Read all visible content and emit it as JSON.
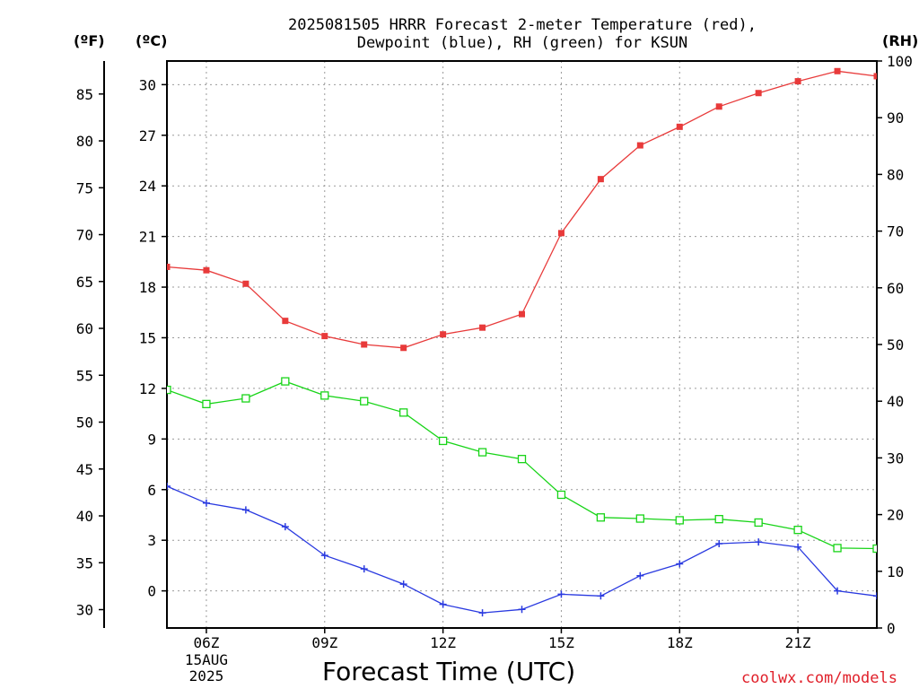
{
  "title_lines": [
    "2025081505 HRRR Forecast 2-meter Temperature (red),",
    "Dewpoint (blue), RH (green) for KSUN"
  ],
  "unit_labels": {
    "fahrenheit": "(ºF)",
    "celsius": "(ºC)",
    "rh": "(RH)"
  },
  "xaxis_title": "Forecast Time (UTC)",
  "credit": "coolwx.com/models",
  "colors": {
    "temperature": "#e83a3a",
    "dewpoint": "#2a3ae0",
    "rh": "#18d418",
    "credit": "#e0202a",
    "grid": "#9a9a9a"
  },
  "chart_data": {
    "type": "line",
    "title": "2025081505 HRRR Forecast 2-meter Temperature (red), Dewpoint (blue), RH (green) for KSUN",
    "xlabel": "Forecast Time (UTC)",
    "x_hours": [
      5,
      6,
      7,
      8,
      9,
      10,
      11,
      12,
      13,
      14,
      15,
      16,
      17,
      18,
      19,
      20,
      21,
      22,
      23
    ],
    "x_ticks": [
      {
        "hour": 6,
        "label": "06Z",
        "sub": [
          "15AUG",
          "2025"
        ]
      },
      {
        "hour": 9,
        "label": "09Z"
      },
      {
        "hour": 12,
        "label": "12Z"
      },
      {
        "hour": 15,
        "label": "15Z"
      },
      {
        "hour": 18,
        "label": "18Z"
      },
      {
        "hour": 21,
        "label": "21Z"
      }
    ],
    "xlim": [
      5,
      23
    ],
    "celsius_ticks": [
      "30",
      "27",
      "24",
      "21",
      "18",
      "15",
      "12",
      "9",
      "6",
      "3",
      "0"
    ],
    "fahrenheit_ticks": [
      "85",
      "80",
      "75",
      "70",
      "65",
      "60",
      "55",
      "50",
      "45",
      "40",
      "35",
      "30"
    ],
    "rh_ticks": [
      "100",
      "90",
      "80",
      "70",
      "60",
      "50",
      "40",
      "30",
      "20",
      "10",
      "0"
    ],
    "ylim_celsius": [
      -2.2,
      31.4
    ],
    "ylim_rh": [
      0,
      100
    ],
    "grid": true,
    "series": [
      {
        "key": "temperature",
        "axis": "celsius",
        "marker": "filled-square",
        "values": [
          19.2,
          19.0,
          18.2,
          16.0,
          15.1,
          14.6,
          14.4,
          15.2,
          15.6,
          16.4,
          21.2,
          24.4,
          26.4,
          27.5,
          28.7,
          29.5,
          30.2,
          30.8,
          30.5
        ]
      },
      {
        "key": "dewpoint",
        "axis": "celsius",
        "marker": "plus",
        "values": [
          6.2,
          5.2,
          4.8,
          3.8,
          2.1,
          1.3,
          0.4,
          -0.8,
          -1.3,
          -1.1,
          -0.2,
          -0.3,
          0.9,
          1.6,
          2.8,
          2.9,
          2.6,
          0.0,
          -0.3
        ]
      },
      {
        "key": "rh",
        "axis": "rh",
        "marker": "open-square",
        "values": [
          42,
          39.5,
          40.5,
          43.5,
          41,
          40,
          38,
          33,
          31,
          29.8,
          23.5,
          19.5,
          19.3,
          19.0,
          19.2,
          18.6,
          17.3,
          14.1,
          14.0
        ]
      }
    ]
  }
}
